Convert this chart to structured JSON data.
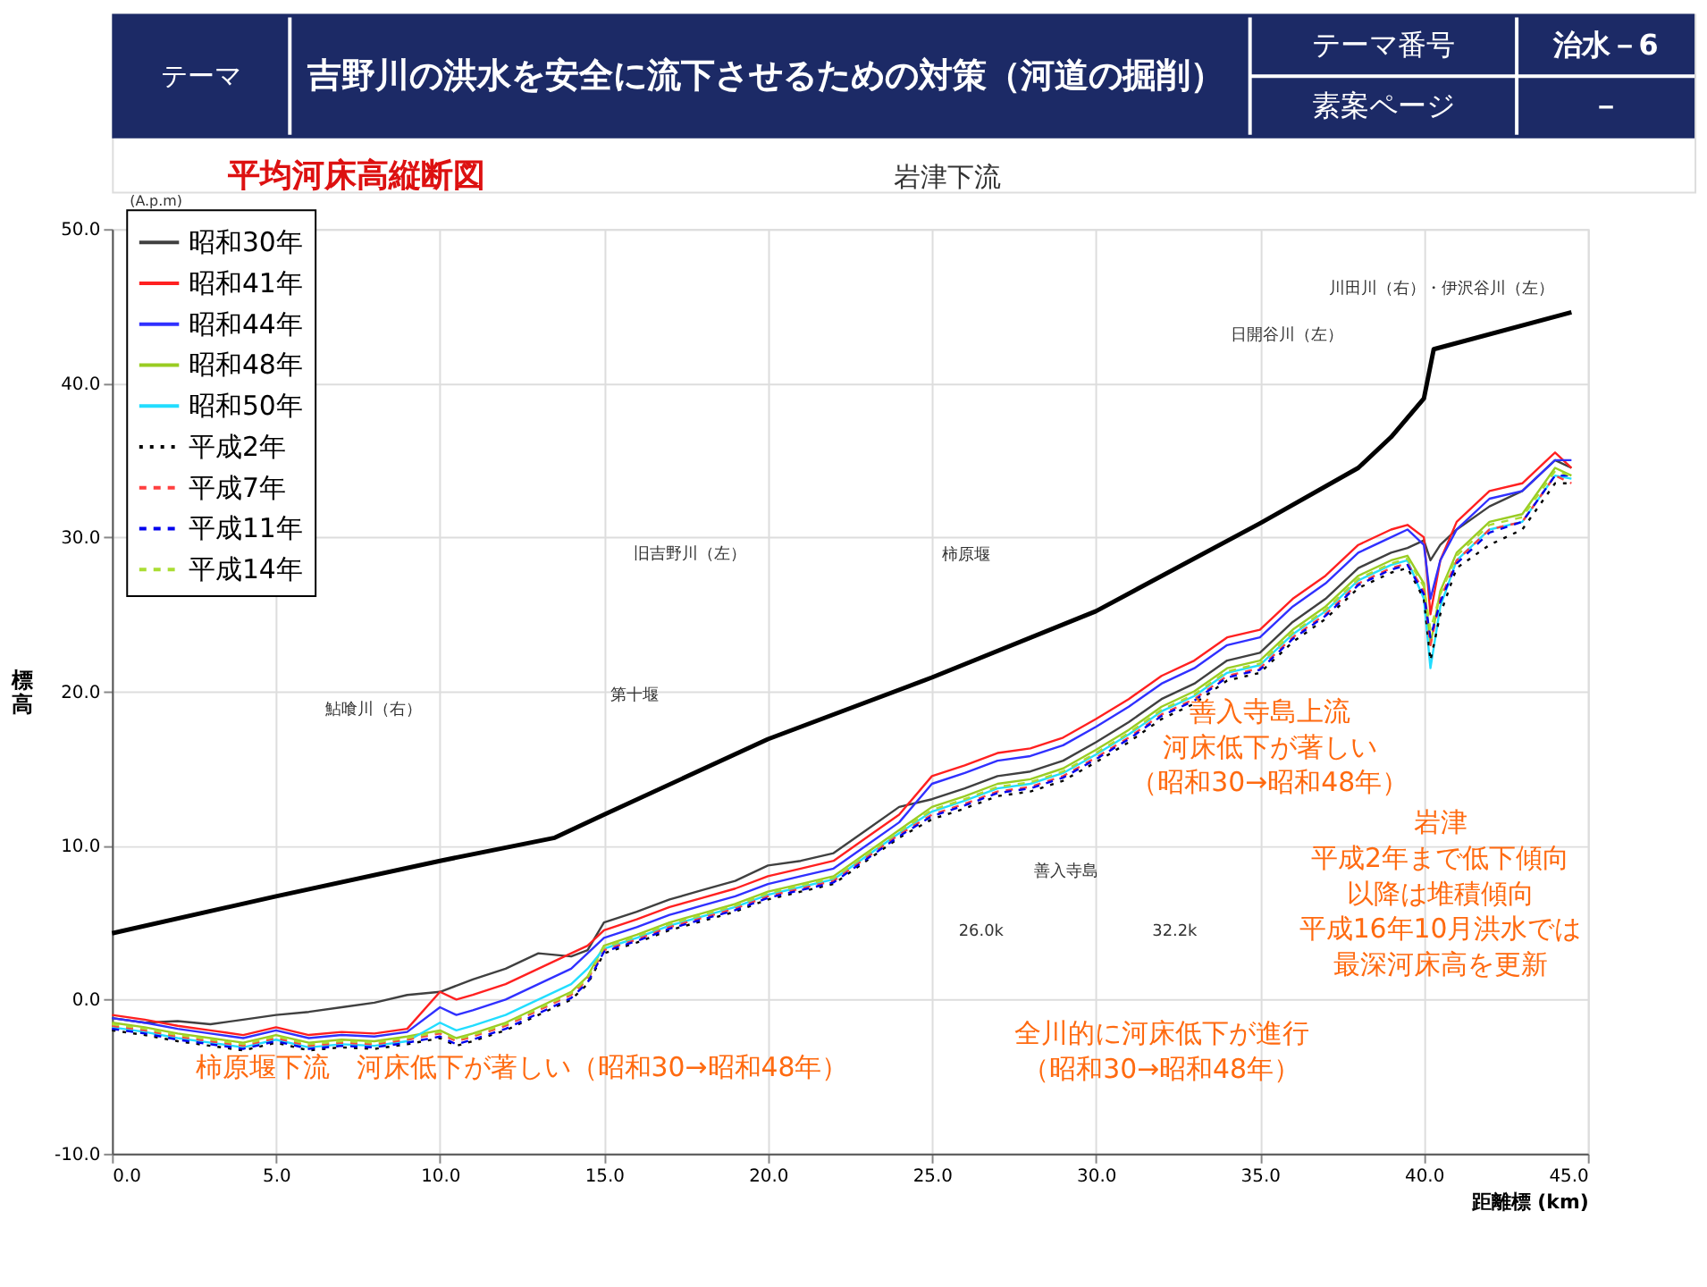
{
  "chart_data": {
    "type": "line",
    "title": "吉野川の洪水を安全に流下させるための対策（河道の掘削）",
    "subtitle": "平均河床高縦断図",
    "xlabel": "距離標 (km)",
    "ylabel": "標高",
    "annotations": [
      "テーマ",
      "テーマ番号",
      "治水－6",
      "素案ページ",
      "－",
      "(A.p.m)",
      "岩津下流",
      "鮎喰川（右）",
      "第十堰",
      "旧吉野川（左）",
      "柿原堰",
      "日開谷川（左）",
      "川田川（右）・伊沢谷川（左）",
      "善入寺島",
      "26.0k",
      "32.2k",
      "善入寺島上流",
      "河床低下が著しい",
      "（昭和30→昭和48年）",
      "岩津",
      "平成2年まで低下傾向",
      "以降は堆積傾向",
      "平成16年10月洪水では",
      "最深河床高を更新",
      "柿原堰下流　河床低下が著しい（昭和30→昭和48年）",
      "全川的に河床低下が進行",
      "（昭和30→昭和48年）"
    ],
    "x": [
      0,
      1,
      2,
      3,
      4,
      5,
      6,
      7,
      8,
      9,
      10,
      10.5,
      11,
      12,
      13,
      14,
      14.5,
      15,
      16,
      17,
      18,
      19,
      20,
      21,
      22,
      23,
      24,
      25,
      26,
      27,
      28,
      29,
      30,
      31,
      32,
      33,
      34,
      35,
      36,
      37,
      38,
      39,
      39.5,
      40,
      40.2,
      40.5,
      41,
      42,
      43,
      44,
      44.5
    ],
    "series": [
      {
        "color": "#000000",
        "x": [
          0,
          5,
          10,
          13.5,
          15,
          20,
          25,
          30,
          35,
          38,
          39,
          40,
          40.3,
          44.5
        ],
        "values": [
          4.3,
          6.7,
          9.0,
          10.5,
          12.0,
          16.9,
          20.9,
          25.2,
          30.9,
          34.5,
          36.5,
          39.0,
          42.2,
          44.6
        ]
      },
      {
        "name": "昭和30年",
        "color": "#404040",
        "line_style": "solid",
        "values": [
          -1.2,
          -1.5,
          -1.4,
          -1.6,
          -1.3,
          -1.0,
          -0.8,
          -0.5,
          -0.2,
          0.3,
          0.5,
          0.9,
          1.3,
          2.0,
          3.0,
          2.8,
          3.2,
          5.0,
          5.7,
          6.5,
          7.1,
          7.7,
          8.7,
          9.0,
          9.5,
          11.0,
          12.5,
          13.0,
          13.7,
          14.5,
          14.8,
          15.5,
          16.7,
          18.0,
          19.5,
          20.5,
          22.0,
          22.5,
          24.5,
          26.0,
          28.0,
          29.0,
          29.3,
          29.8,
          28.5,
          29.5,
          30.5,
          32.0,
          33.0,
          35.0,
          34.5
        ]
      },
      {
        "name": "昭和41年",
        "color": "#ff2020",
        "line_style": "solid",
        "values": [
          -1.0,
          -1.3,
          -1.7,
          -2.0,
          -2.3,
          -1.8,
          -2.3,
          -2.1,
          -2.2,
          -1.9,
          0.5,
          0.0,
          0.3,
          1.0,
          2.0,
          3.0,
          3.5,
          4.5,
          5.2,
          6.0,
          6.6,
          7.2,
          8.0,
          8.5,
          9.0,
          10.5,
          12.0,
          14.5,
          15.2,
          16.0,
          16.3,
          17.0,
          18.2,
          19.5,
          21.0,
          22.0,
          23.5,
          24.0,
          26.0,
          27.5,
          29.5,
          30.5,
          30.8,
          30.0,
          25.0,
          28.5,
          31.0,
          33.0,
          33.5,
          35.5,
          34.5
        ]
      },
      {
        "name": "昭和44年",
        "color": "#3030ff",
        "line_style": "solid",
        "values": [
          -1.2,
          -1.5,
          -1.9,
          -2.2,
          -2.5,
          -2.0,
          -2.5,
          -2.3,
          -2.4,
          -2.1,
          -0.5,
          -1.0,
          -0.7,
          0.0,
          1.0,
          2.0,
          3.0,
          4.0,
          4.7,
          5.5,
          6.1,
          6.7,
          7.5,
          8.0,
          8.5,
          10.0,
          11.5,
          14.0,
          14.7,
          15.5,
          15.8,
          16.5,
          17.7,
          19.0,
          20.5,
          21.5,
          23.0,
          23.5,
          25.5,
          27.0,
          29.0,
          30.0,
          30.5,
          29.5,
          26.0,
          28.5,
          30.5,
          32.5,
          33.0,
          35.0,
          35.0
        ]
      },
      {
        "name": "昭和48年",
        "color": "#99cc22",
        "line_style": "solid",
        "values": [
          -1.5,
          -1.8,
          -2.2,
          -2.5,
          -2.8,
          -2.3,
          -2.8,
          -2.6,
          -2.7,
          -2.4,
          -2.0,
          -2.5,
          -2.2,
          -1.5,
          -0.5,
          0.5,
          1.5,
          3.5,
          4.2,
          5.0,
          5.6,
          6.2,
          7.0,
          7.5,
          8.0,
          9.5,
          11.0,
          12.5,
          13.2,
          14.0,
          14.3,
          15.0,
          16.2,
          17.5,
          19.0,
          20.0,
          21.5,
          22.0,
          24.0,
          25.5,
          27.5,
          28.5,
          28.8,
          27.0,
          23.0,
          26.5,
          29.0,
          31.0,
          31.5,
          34.5,
          34.0
        ]
      },
      {
        "name": "昭和50年",
        "color": "#22ddff",
        "line_style": "solid",
        "values": [
          -1.8,
          -2.1,
          -2.5,
          -2.8,
          -3.1,
          -2.6,
          -3.1,
          -2.9,
          -3.0,
          -2.7,
          -1.5,
          -2.0,
          -1.7,
          -1.0,
          0.0,
          1.0,
          2.0,
          3.3,
          4.0,
          4.8,
          5.4,
          6.0,
          6.8,
          7.3,
          7.8,
          9.3,
          10.8,
          12.2,
          12.9,
          13.7,
          14.0,
          14.7,
          15.9,
          17.2,
          18.7,
          19.7,
          21.2,
          21.7,
          23.7,
          25.2,
          27.2,
          28.2,
          28.5,
          26.0,
          21.5,
          25.5,
          28.5,
          30.5,
          31.0,
          34.0,
          33.8
        ]
      },
      {
        "name": "平成2年",
        "color": "#000000",
        "line_style": "dotted",
        "values": [
          -2.0,
          -2.3,
          -2.7,
          -3.0,
          -3.3,
          -2.8,
          -3.3,
          -3.1,
          -3.2,
          -2.9,
          -2.5,
          -3.0,
          -2.7,
          -2.0,
          -1.0,
          0.0,
          1.0,
          3.0,
          3.7,
          4.5,
          5.1,
          5.7,
          6.5,
          7.0,
          7.5,
          9.0,
          10.5,
          11.7,
          12.4,
          13.2,
          13.5,
          14.2,
          15.4,
          16.7,
          18.2,
          19.2,
          20.7,
          21.2,
          23.2,
          24.7,
          26.7,
          27.7,
          28.0,
          26.0,
          22.0,
          25.0,
          28.0,
          29.5,
          30.5,
          33.5,
          33.5
        ]
      },
      {
        "name": "平成7年",
        "color": "#ff4040",
        "line_style": "dashed",
        "values": [
          -1.7,
          -2.0,
          -2.4,
          -2.7,
          -3.0,
          -2.5,
          -3.0,
          -2.8,
          -2.9,
          -2.6,
          -2.2,
          -2.7,
          -2.4,
          -1.7,
          -0.7,
          0.3,
          1.3,
          3.2,
          3.9,
          4.7,
          5.3,
          5.9,
          6.7,
          7.2,
          7.7,
          9.2,
          10.7,
          12.0,
          12.7,
          13.5,
          13.8,
          14.5,
          15.7,
          17.0,
          18.5,
          19.5,
          21.0,
          21.5,
          23.5,
          25.0,
          27.0,
          28.0,
          28.3,
          26.5,
          23.0,
          26.0,
          28.5,
          30.5,
          31.0,
          34.0,
          33.5
        ]
      },
      {
        "name": "平成11年",
        "color": "#0000ee",
        "line_style": "dashed",
        "values": [
          -1.9,
          -2.2,
          -2.6,
          -2.9,
          -3.2,
          -2.7,
          -3.2,
          -3.0,
          -3.1,
          -2.8,
          -2.4,
          -2.9,
          -2.6,
          -1.9,
          -0.9,
          0.1,
          1.1,
          3.1,
          3.8,
          4.6,
          5.2,
          5.8,
          6.6,
          7.1,
          7.6,
          9.1,
          10.6,
          11.9,
          12.6,
          13.4,
          13.7,
          14.4,
          15.6,
          16.9,
          18.4,
          19.4,
          20.9,
          21.4,
          23.4,
          24.9,
          26.9,
          27.9,
          28.2,
          26.3,
          23.5,
          25.8,
          28.3,
          30.3,
          31.0,
          34.0,
          34.0
        ]
      },
      {
        "name": "平成14年",
        "color": "#aadd33",
        "line_style": "dashed",
        "values": [
          -1.6,
          -1.9,
          -2.3,
          -2.6,
          -2.9,
          -2.4,
          -2.9,
          -2.7,
          -2.8,
          -2.5,
          -2.1,
          -2.6,
          -2.3,
          -1.6,
          -0.6,
          0.4,
          1.4,
          3.4,
          4.1,
          4.9,
          5.5,
          6.1,
          6.9,
          7.4,
          7.9,
          9.4,
          10.9,
          12.3,
          13.0,
          13.8,
          14.1,
          14.8,
          16.0,
          17.3,
          18.8,
          19.8,
          21.3,
          21.8,
          23.8,
          25.3,
          27.3,
          28.3,
          28.6,
          26.8,
          24.0,
          26.3,
          28.8,
          30.8,
          31.3,
          34.3,
          34.0
        ]
      }
    ],
    "xlim": [
      0,
      45
    ],
    "xticks": [
      {
        "value": 0,
        "label": "0.0"
      },
      {
        "value": 5,
        "label": "5.0"
      },
      {
        "value": 10,
        "label": "10.0"
      },
      {
        "value": 15,
        "label": "15.0"
      },
      {
        "value": 20,
        "label": "20.0"
      },
      {
        "value": 25,
        "label": "25.0"
      },
      {
        "value": 30,
        "label": "30.0"
      },
      {
        "value": 35,
        "label": "35.0"
      },
      {
        "value": 40,
        "label": "40.0"
      },
      {
        "value": 45,
        "label": "45.0"
      }
    ],
    "ylim": [
      -10,
      50
    ],
    "yticks": [
      {
        "value": -10,
        "label": "-10.0"
      },
      {
        "value": 0,
        "label": "0.0"
      },
      {
        "value": 10,
        "label": "10.0"
      },
      {
        "value": 20,
        "label": "20.0"
      },
      {
        "value": 30,
        "label": "30.0"
      },
      {
        "value": 40,
        "label": "40.0"
      },
      {
        "value": 50,
        "label": "50.0"
      }
    ],
    "grid": true,
    "legend": "top left"
  }
}
